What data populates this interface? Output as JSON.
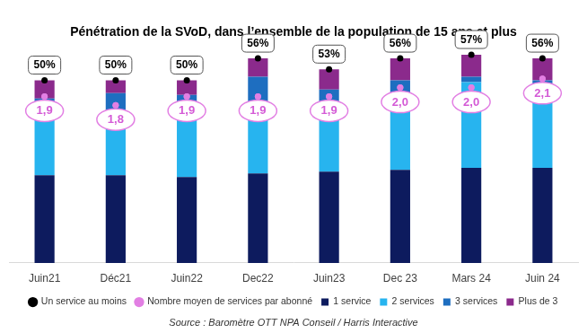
{
  "chart_data": {
    "type": "bar",
    "title": "Pénétration de la SVoD, dans l’ensemble de la population de 15 ans et plus",
    "source": "Source : Baromètre OTT NPA Conseil / Harris Interactive",
    "categories": [
      "Juin21",
      "Déc21",
      "Juin22",
      "Dec22",
      "Juin23",
      "Dec 23",
      "Mars 24",
      "Juin 24"
    ],
    "stacked": true,
    "grid": false,
    "legend": "bottom",
    "tick_labels": "x",
    "ylim": [
      0,
      60
    ],
    "y2lim": [
      0,
      2.5
    ],
    "series": [
      {
        "name": "1 service",
        "type": "bar",
        "color": "#0d1b5e",
        "values": [
          24,
          24,
          23.5,
          24.5,
          25,
          25.5,
          26,
          26
        ]
      },
      {
        "name": "2 services",
        "type": "bar",
        "color": "#27b4ef",
        "values": [
          18,
          16,
          19,
          19.5,
          16.5,
          21,
          23.5,
          21
        ]
      },
      {
        "name": "3 services",
        "type": "bar",
        "color": "#1e6ec0",
        "values": [
          3,
          6.5,
          3.5,
          7,
          6,
          3.5,
          1.5,
          3
        ]
      },
      {
        "name": "Plus de 3",
        "type": "bar",
        "color": "#8b2a8c",
        "values": [
          5,
          3.5,
          4,
          5,
          5.5,
          6,
          6,
          6
        ]
      },
      {
        "name": "Un service au moins",
        "type": "line",
        "marker": "circle",
        "line_style": "none",
        "color": "#000000",
        "data_labels": true,
        "values": [
          50,
          50,
          50,
          56,
          53,
          56,
          57,
          56
        ],
        "value_labels": [
          "50%",
          "50%",
          "50%",
          "56%",
          "53%",
          "56%",
          "57%",
          "56%"
        ]
      },
      {
        "name": "Nombre moyen de services par abonné",
        "type": "line",
        "marker": "circle",
        "line_style": "none",
        "color": "#e27fe3",
        "axis": "y2",
        "data_labels": true,
        "values": [
          1.9,
          1.8,
          1.9,
          1.9,
          1.9,
          2.0,
          2.0,
          2.1
        ],
        "value_labels": [
          "1,9",
          "1,8",
          "1,9",
          "1,9",
          "1,9",
          "2,0",
          "2,0",
          "2,1"
        ]
      }
    ]
  }
}
